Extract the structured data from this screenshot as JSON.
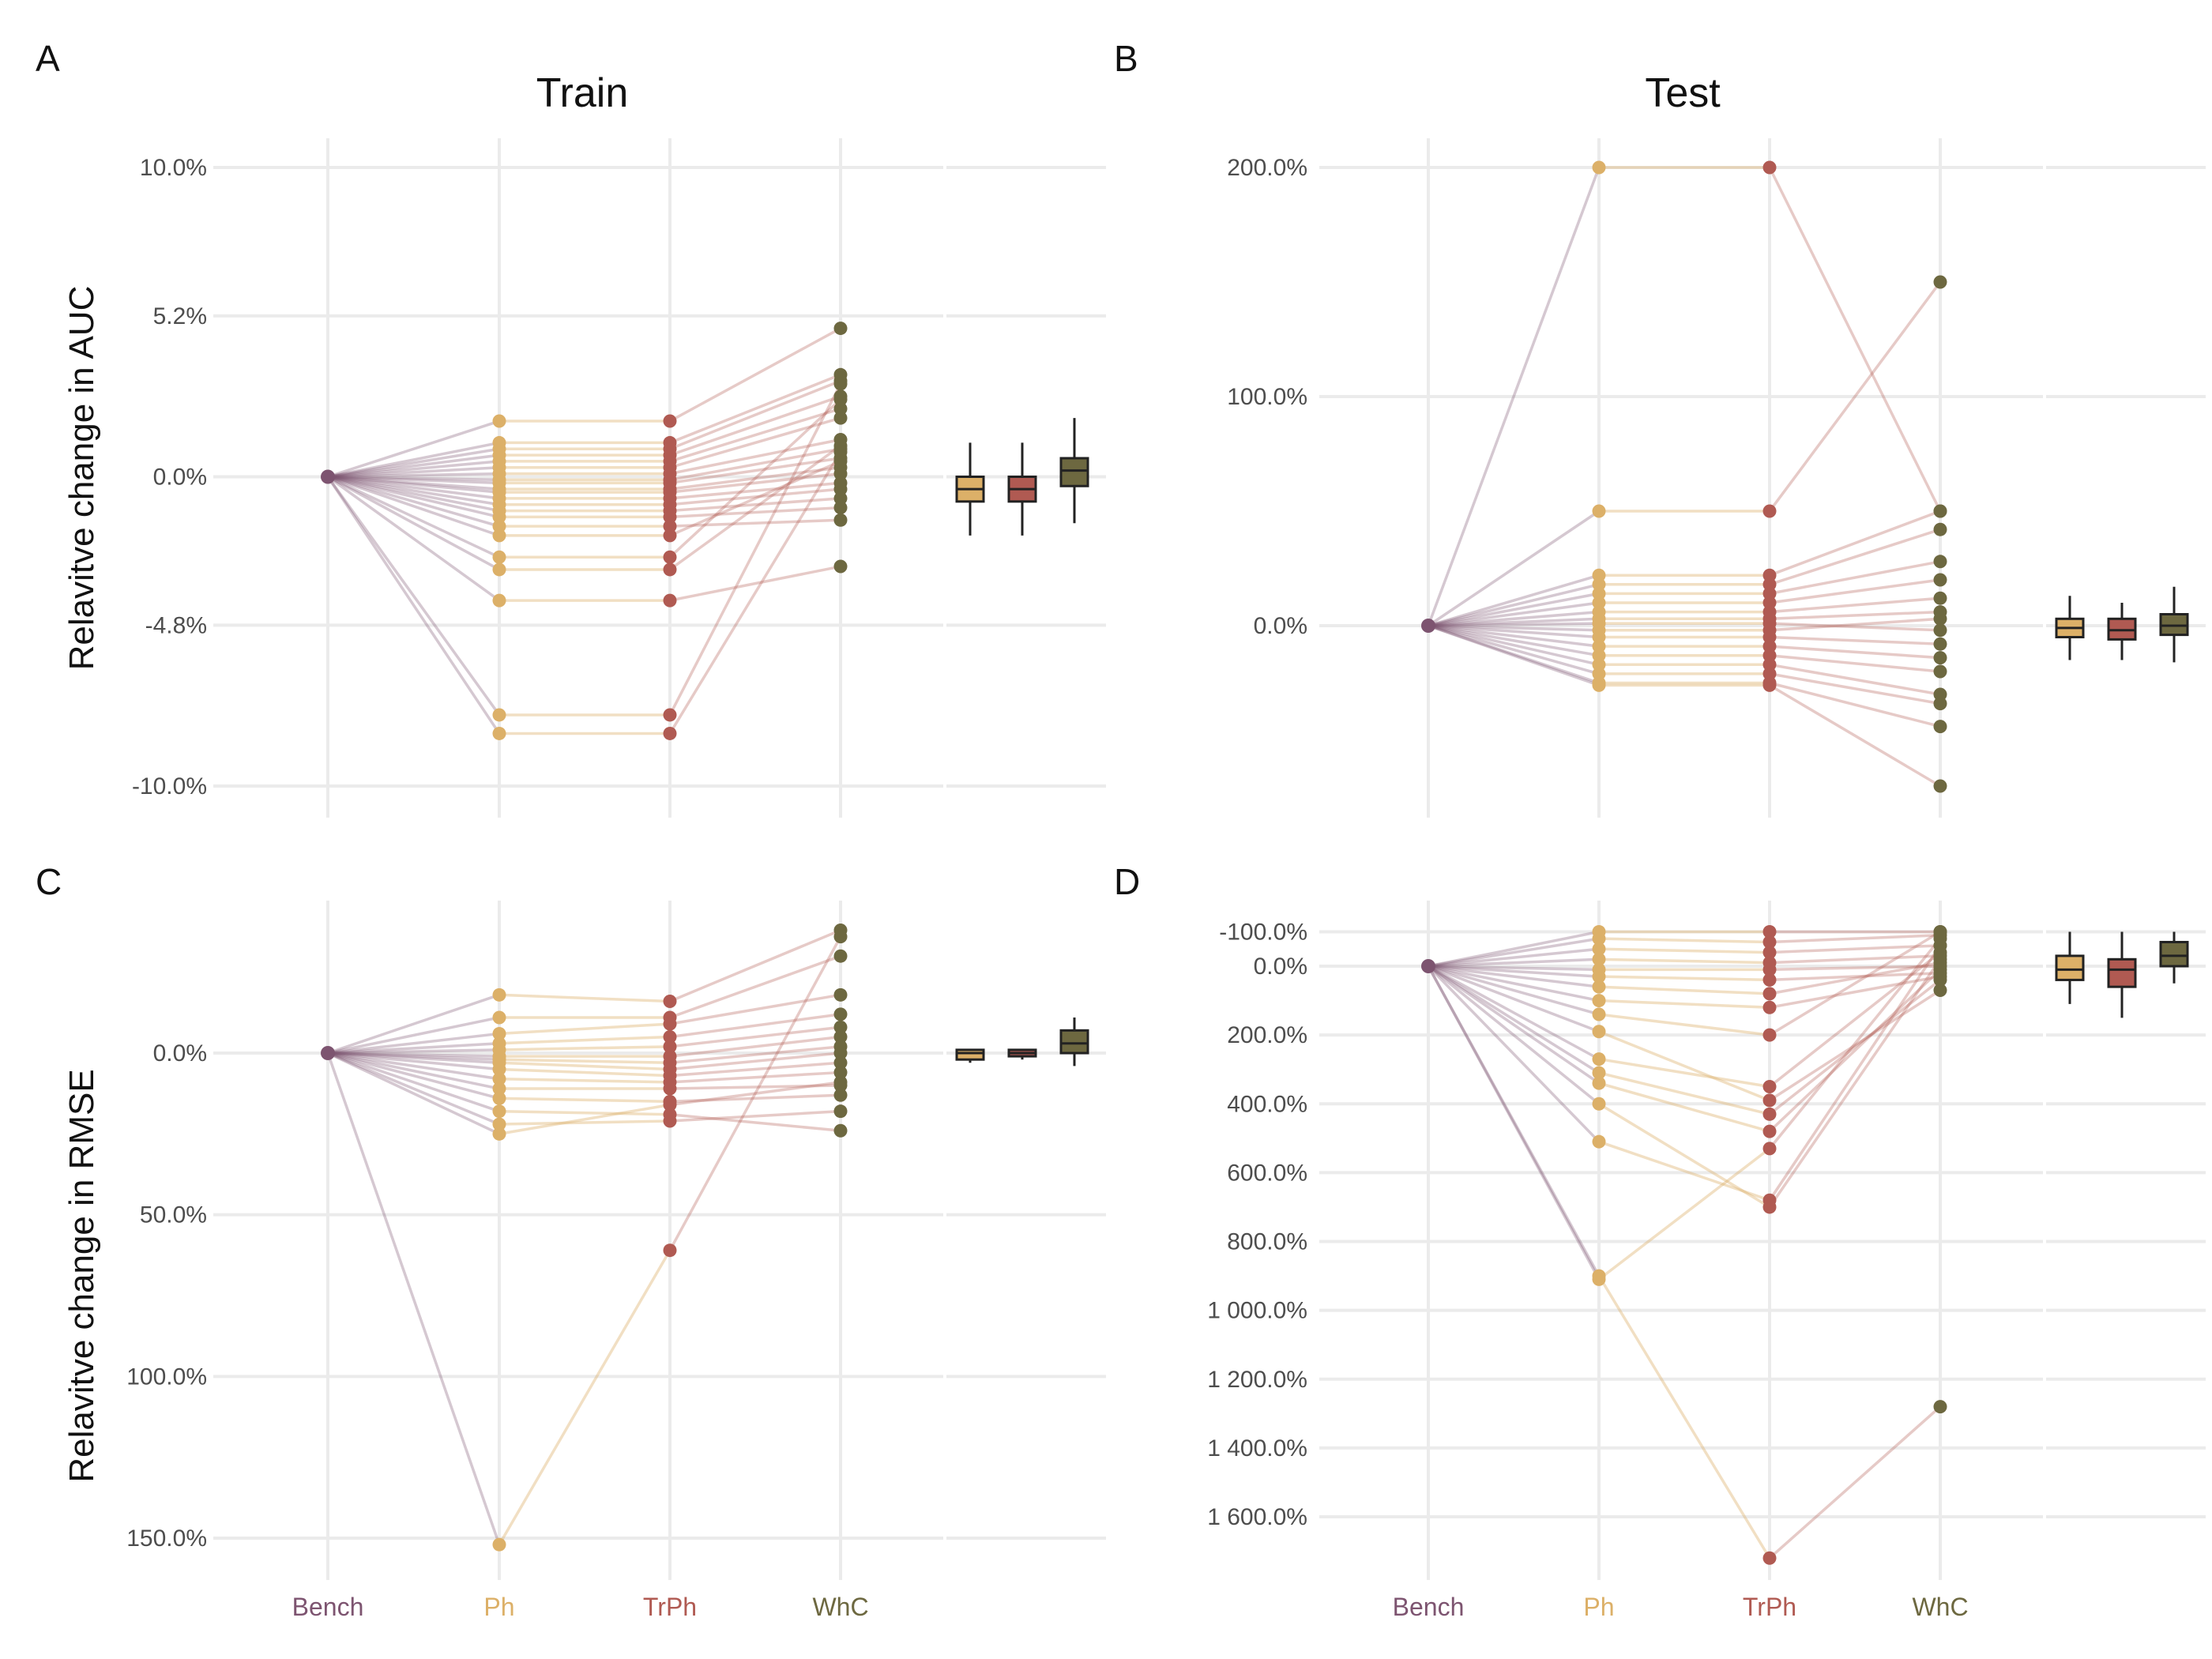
{
  "colors": {
    "Bench": "#7d5470",
    "Ph": "#dcb068",
    "TrPh": "#b05a52",
    "WhC": "#6d6840",
    "box_median": "#2f2f2f",
    "grid": "#ebebeb"
  },
  "x_axis": {
    "categories": [
      "Bench",
      "Ph",
      "TrPh",
      "WhC"
    ]
  },
  "titles": {
    "train": "Train",
    "test": "Test",
    "ylabel_auc": "Relavitve change in AUC",
    "ylabel_rmse": "Relavitve change in RMSE"
  },
  "chart_data": [
    {
      "panel": "A",
      "type": "line",
      "title": "Train",
      "ylabel": "Relavitve change in AUC",
      "y_ticks": [
        "10.0%",
        "5.2%",
        "0.0%",
        "-4.8%",
        "-10.0%"
      ],
      "y_tick_values": [
        10.0,
        5.2,
        0.0,
        -4.8,
        -10.0
      ],
      "ylim": [
        -10.0,
        10.0
      ],
      "y_reversed": false,
      "x": [
        "Bench",
        "Ph",
        "TrPh",
        "WhC"
      ],
      "series": [
        {
          "values": [
            0,
            1.8,
            1.8,
            4.8
          ]
        },
        {
          "values": [
            0,
            1.1,
            1.1,
            3.3
          ]
        },
        {
          "values": [
            0,
            0.9,
            0.9,
            3.1
          ]
        },
        {
          "values": [
            0,
            0.7,
            0.7,
            2.6
          ]
        },
        {
          "values": [
            0,
            0.5,
            0.5,
            2.2
          ]
        },
        {
          "values": [
            0,
            0.3,
            0.3,
            1.9
          ]
        },
        {
          "values": [
            0,
            0.1,
            0.1,
            1.2
          ]
        },
        {
          "values": [
            0,
            -0.1,
            -0.1,
            0.9
          ]
        },
        {
          "values": [
            0,
            -0.2,
            -0.2,
            0.6
          ]
        },
        {
          "values": [
            0,
            -0.4,
            -0.4,
            0.3
          ]
        },
        {
          "values": [
            0,
            -0.5,
            -0.5,
            0.1
          ]
        },
        {
          "values": [
            0,
            -0.7,
            -0.7,
            -0.2
          ]
        },
        {
          "values": [
            0,
            -0.9,
            -0.9,
            -0.4
          ]
        },
        {
          "values": [
            0,
            -1.1,
            -1.1,
            -0.7
          ]
        },
        {
          "values": [
            0,
            -1.3,
            -1.3,
            -1.0
          ]
        },
        {
          "values": [
            0,
            -1.6,
            -1.6,
            -1.4
          ]
        },
        {
          "values": [
            0,
            -1.9,
            -1.9,
            0.5
          ]
        },
        {
          "values": [
            0,
            -2.6,
            -2.6,
            2.5
          ]
        },
        {
          "values": [
            0,
            -3.0,
            -3.0,
            1.0
          ]
        },
        {
          "values": [
            0,
            -4.0,
            -4.0,
            -2.9
          ]
        },
        {
          "values": [
            0,
            -7.7,
            -7.7,
            3.0
          ]
        },
        {
          "values": [
            0,
            -8.3,
            -8.3,
            0.8
          ]
        }
      ],
      "boxplots": [
        {
          "name": "Ph",
          "min": -1.9,
          "q1": -0.8,
          "median": -0.4,
          "q3": 0.0,
          "max": 1.1
        },
        {
          "name": "TrPh",
          "min": -1.9,
          "q1": -0.8,
          "median": -0.4,
          "q3": 0.0,
          "max": 1.1
        },
        {
          "name": "WhC",
          "min": -1.5,
          "q1": -0.3,
          "median": 0.2,
          "q3": 0.6,
          "max": 1.9
        }
      ]
    },
    {
      "panel": "B",
      "type": "line",
      "title": "Test",
      "ylabel": "",
      "y_ticks": [
        "200.0%",
        "100.0%",
        "0.0%"
      ],
      "y_tick_values": [
        200.0,
        100.0,
        0.0
      ],
      "ylim": [
        -70,
        200
      ],
      "y_reversed": false,
      "x": [
        "Bench",
        "Ph",
        "TrPh",
        "WhC"
      ],
      "series": [
        {
          "values": [
            0,
            200,
            200,
            50
          ]
        },
        {
          "values": [
            0,
            50,
            50,
            150
          ]
        },
        {
          "values": [
            0,
            22,
            22,
            50
          ]
        },
        {
          "values": [
            0,
            18,
            18,
            42
          ]
        },
        {
          "values": [
            0,
            14,
            14,
            28
          ]
        },
        {
          "values": [
            0,
            10,
            10,
            20
          ]
        },
        {
          "values": [
            0,
            6,
            6,
            12
          ]
        },
        {
          "values": [
            0,
            3,
            3,
            6
          ]
        },
        {
          "values": [
            0,
            1,
            1,
            -2
          ]
        },
        {
          "values": [
            0,
            -2,
            -2,
            3
          ]
        },
        {
          "values": [
            0,
            -5,
            -5,
            -8
          ]
        },
        {
          "values": [
            0,
            -9,
            -9,
            -14
          ]
        },
        {
          "values": [
            0,
            -13,
            -13,
            -20
          ]
        },
        {
          "values": [
            0,
            -17,
            -17,
            -30
          ]
        },
        {
          "values": [
            0,
            -21,
            -21,
            -34
          ]
        },
        {
          "values": [
            0,
            -25,
            -25,
            -44
          ]
        },
        {
          "values": [
            0,
            -26,
            -26,
            -70
          ]
        }
      ],
      "boxplots": [
        {
          "name": "Ph",
          "min": -15,
          "q1": -5,
          "median": -1,
          "q3": 3,
          "max": 13
        },
        {
          "name": "TrPh",
          "min": -15,
          "q1": -6,
          "median": -2,
          "q3": 3,
          "max": 10
        },
        {
          "name": "WhC",
          "min": -16,
          "q1": -4,
          "median": 0,
          "q3": 5,
          "max": 17
        }
      ]
    },
    {
      "panel": "C",
      "type": "line",
      "title": "",
      "ylabel": "Relavitve change in RMSE",
      "y_ticks": [
        "0.0%",
        "50.0%",
        "100.0%",
        "150.0%"
      ],
      "y_tick_values": [
        0.0,
        50.0,
        100.0,
        150.0
      ],
      "ylim": [
        -45,
        155
      ],
      "y_reversed": true,
      "x": [
        "Bench",
        "Ph",
        "TrPh",
        "WhC"
      ],
      "series": [
        {
          "values": [
            0,
            152,
            61,
            -36
          ]
        },
        {
          "values": [
            0,
            -18,
            -16,
            -38
          ]
        },
        {
          "values": [
            0,
            -11,
            -11,
            -30
          ]
        },
        {
          "values": [
            0,
            -6,
            -9,
            -18
          ]
        },
        {
          "values": [
            0,
            -3,
            -5,
            -12
          ]
        },
        {
          "values": [
            0,
            -1,
            -2,
            -8
          ]
        },
        {
          "values": [
            0,
            1,
            1,
            -5
          ]
        },
        {
          "values": [
            0,
            2,
            3,
            -2
          ]
        },
        {
          "values": [
            0,
            3,
            5,
            0
          ]
        },
        {
          "values": [
            0,
            5,
            7,
            3
          ]
        },
        {
          "values": [
            0,
            8,
            9,
            6
          ]
        },
        {
          "values": [
            0,
            11,
            11,
            10
          ]
        },
        {
          "values": [
            0,
            14,
            15,
            13
          ]
        },
        {
          "values": [
            0,
            18,
            19,
            24
          ]
        },
        {
          "values": [
            0,
            22,
            21,
            18
          ]
        },
        {
          "values": [
            0,
            25,
            16,
            9
          ]
        }
      ],
      "boxplots": [
        {
          "name": "Ph",
          "min": -1,
          "q1": -1,
          "median": 0,
          "q3": 2,
          "max": 3
        },
        {
          "name": "TrPh",
          "min": -1,
          "q1": -1,
          "median": 0,
          "q3": 1,
          "max": 2
        },
        {
          "name": "WhC",
          "min": -11,
          "q1": -7,
          "median": -3,
          "q3": 0,
          "max": 4
        }
      ]
    },
    {
      "panel": "D",
      "type": "line",
      "title": "",
      "ylabel": "",
      "y_ticks": [
        "-100.0%",
        "0.0%",
        "200.0%",
        "400.0%",
        "600.0%",
        "800.0%",
        "1 000.0%",
        "1 200.0%",
        "1 400.0%",
        "1 600.0%"
      ],
      "y_tick_values": [
        -100,
        0,
        200,
        400,
        600,
        800,
        1000,
        1200,
        1400,
        1600
      ],
      "ylim": [
        -110,
        1720
      ],
      "y_reversed": true,
      "x": [
        "Bench",
        "Ph",
        "TrPh",
        "WhC"
      ],
      "series": [
        {
          "values": [
            0,
            900,
            1720,
            1280
          ]
        },
        {
          "values": [
            0,
            910,
            530,
            -80
          ]
        },
        {
          "values": [
            0,
            510,
            680,
            -60
          ]
        },
        {
          "values": [
            0,
            400,
            700,
            -20
          ]
        },
        {
          "values": [
            0,
            340,
            480,
            10
          ]
        },
        {
          "values": [
            0,
            310,
            430,
            40
          ]
        },
        {
          "values": [
            0,
            270,
            350,
            -40
          ]
        },
        {
          "values": [
            0,
            190,
            390,
            70
          ]
        },
        {
          "values": [
            0,
            140,
            200,
            -100
          ]
        },
        {
          "values": [
            0,
            100,
            120,
            30
          ]
        },
        {
          "values": [
            0,
            60,
            80,
            -10
          ]
        },
        {
          "values": [
            0,
            30,
            40,
            20
          ]
        },
        {
          "values": [
            0,
            10,
            10,
            0
          ]
        },
        {
          "values": [
            0,
            -20,
            -10,
            -30
          ]
        },
        {
          "values": [
            0,
            -50,
            -40,
            -60
          ]
        },
        {
          "values": [
            0,
            -80,
            -70,
            -90
          ]
        },
        {
          "values": [
            0,
            -100,
            -100,
            -100
          ]
        }
      ],
      "boxplots": [
        {
          "name": "Ph",
          "min": -100,
          "q1": -30,
          "median": 10,
          "q3": 40,
          "max": 110
        },
        {
          "name": "TrPh",
          "min": -100,
          "q1": -20,
          "median": 10,
          "q3": 60,
          "max": 150
        },
        {
          "name": "WhC",
          "min": -100,
          "q1": -70,
          "median": -30,
          "q3": 0,
          "max": 50
        }
      ]
    }
  ]
}
